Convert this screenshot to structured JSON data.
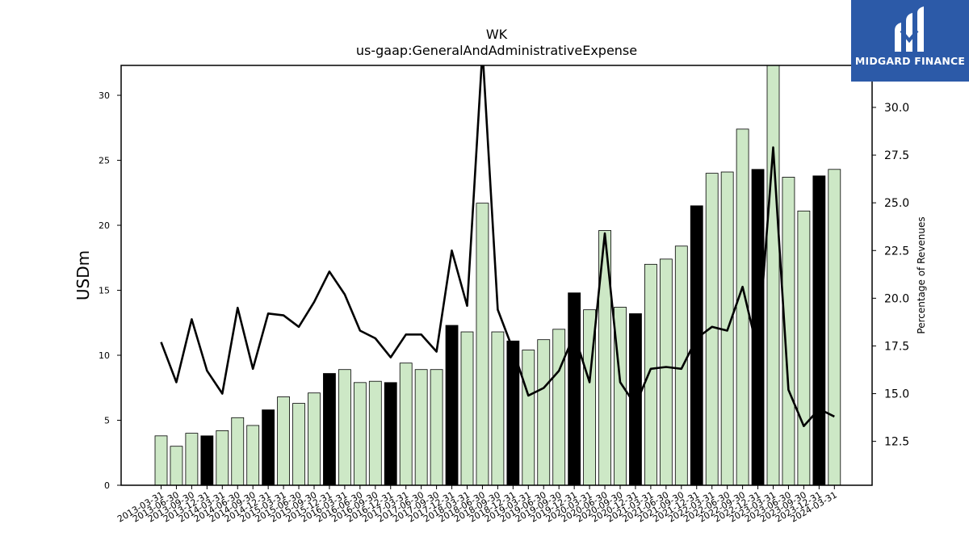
{
  "chart_data": {
    "type": "bar",
    "title": "WK",
    "subtitle": "us-gaap:GeneralAndAdministrativeExpense",
    "ylabel": "USDm",
    "y2label": "Percentage of Revenues",
    "ylim": [
      0,
      32.3
    ],
    "y2lim": [
      10.2,
      32.2
    ],
    "yticks": [
      0,
      5,
      10,
      15,
      20,
      25,
      30
    ],
    "y2ticks": [
      "12.5",
      "15.0",
      "17.5",
      "20.0",
      "22.5",
      "25.0",
      "27.5",
      "30.0"
    ],
    "categories": [
      "2013-03-31",
      "2013-06-30",
      "2013-09-30",
      "2013-12-31",
      "2014-03-31",
      "2014-06-30",
      "2014-09-30",
      "2014-12-31",
      "2015-03-31",
      "2015-06-30",
      "2015-09-30",
      "2015-12-31",
      "2016-03-31",
      "2016-06-30",
      "2016-09-30",
      "2016-12-31",
      "2017-03-31",
      "2017-06-30",
      "2017-09-30",
      "2017-12-31",
      "2018-03-31",
      "2018-06-30",
      "2018-09-30",
      "2018-12-31",
      "2019-03-31",
      "2019-06-30",
      "2019-09-30",
      "2019-12-31",
      "2020-03-31",
      "2020-06-30",
      "2020-09-30",
      "2020-12-31",
      "2021-03-31",
      "2021-06-30",
      "2021-09-30",
      "2021-12-31",
      "2022-03-31",
      "2022-06-30",
      "2022-09-30",
      "2022-12-31",
      "2023-03-31",
      "2023-06-30",
      "2023-09-30",
      "2023-12-31",
      "2024-03-31"
    ],
    "series": [
      {
        "type": "bar",
        "values": [
          3.8,
          3.0,
          4.0,
          3.8,
          4.2,
          5.2,
          4.6,
          5.8,
          6.8,
          6.3,
          7.1,
          8.6,
          8.9,
          7.9,
          8.0,
          7.9,
          9.4,
          8.9,
          8.9,
          12.3,
          11.8,
          21.7,
          11.8,
          11.1,
          10.4,
          11.2,
          12.0,
          14.8,
          13.5,
          19.6,
          13.7,
          13.2,
          17.0,
          17.4,
          18.4,
          21.5,
          24.0,
          24.1,
          27.4,
          24.3,
          32.3,
          23.7,
          21.1,
          23.8,
          24.3
        ],
        "highlight": [
          3,
          7,
          11,
          15,
          19,
          23,
          27,
          31,
          35,
          39,
          43
        ]
      },
      {
        "type": "line",
        "axis": "right",
        "values": [
          17.7,
          15.6,
          18.9,
          16.2,
          15.0,
          19.5,
          16.3,
          19.2,
          19.1,
          18.5,
          19.8,
          21.4,
          20.2,
          18.3,
          17.9,
          16.9,
          18.1,
          18.1,
          17.2,
          22.5,
          19.6,
          33.0,
          19.4,
          17.3,
          14.9,
          15.3,
          16.2,
          18.1,
          15.6,
          23.4,
          15.6,
          14.4,
          16.3,
          16.4,
          16.3,
          17.9,
          18.5,
          18.3,
          20.6,
          17.2,
          27.9,
          15.2,
          13.3,
          14.2,
          13.8
        ]
      }
    ],
    "colors": {
      "bar": "#cde8c6",
      "highlight": "#000000",
      "line": "#000000"
    }
  },
  "logo": {
    "text": "MIDGARD FINANCE",
    "color": "#2c5aa8"
  }
}
